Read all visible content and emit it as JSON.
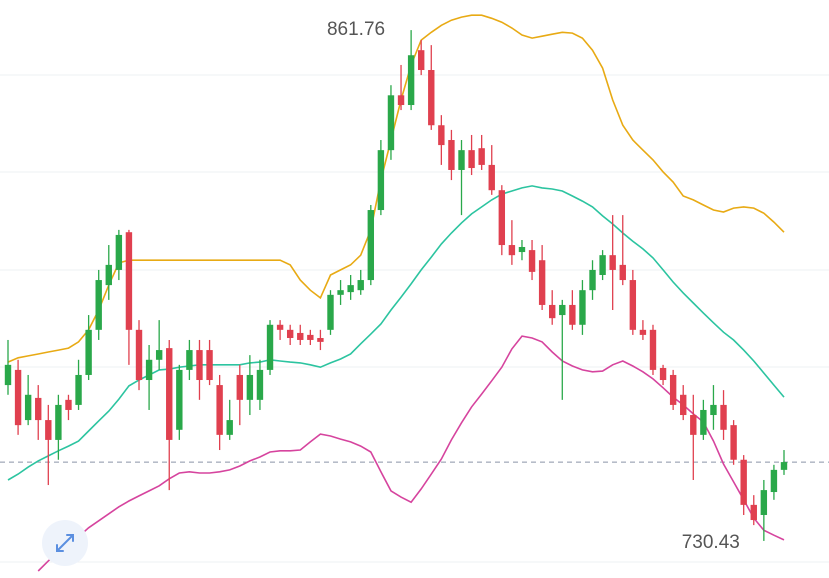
{
  "chart_data": {
    "type": "candlestick",
    "ylim": [
      720.9,
      869.5
    ],
    "up_color": "#2aa84a",
    "down_color": "#e0404f",
    "open": [
      770.5,
      774.4,
      761.5,
      767.2,
      761.5,
      756.4,
      766.7,
      765.4,
      773.1,
      784.7,
      796.2,
      800.1,
      809.8,
      784.7,
      771.8,
      777.0,
      780.0,
      759.0,
      774.4,
      779.5,
      779.5,
      770.5,
      757.7,
      773.1,
      766.7,
      766.7,
      774.4,
      786.0,
      784.7,
      783.9,
      783.4,
      782.6,
      784.7,
      793.7,
      794.4,
      794.9,
      797.5,
      815.5,
      830.9,
      845.0,
      842.5,
      856.6,
      851.5,
      837.3,
      833.5,
      825.8,
      830.9,
      831.4,
      827.1,
      820.6,
      806.5,
      804.7,
      805.2,
      802.6,
      791.1,
      788.5,
      791.1,
      786.0,
      794.9,
      798.8,
      803.9,
      801.4,
      797.5,
      784.7,
      784.7,
      774.9,
      773.1,
      768.0,
      762.8,
      757.7,
      762.8,
      765.4,
      760.2,
      751.3,
      739.7,
      737.1,
      743.0,
      748.7
    ],
    "high": [
      782.1,
      777.0,
      773.1,
      770.5,
      765.4,
      768.0,
      768.0,
      777.0,
      788.5,
      800.1,
      806.5,
      810.4,
      810.4,
      787.2,
      780.8,
      787.2,
      782.1,
      775.7,
      782.1,
      782.1,
      782.1,
      773.1,
      766.7,
      775.7,
      778.2,
      777.0,
      787.2,
      787.2,
      786.0,
      786.0,
      784.7,
      784.7,
      794.9,
      797.5,
      798.8,
      800.1,
      816.8,
      833.5,
      847.6,
      852.8,
      861.76,
      859.2,
      857.9,
      839.9,
      836.1,
      833.5,
      834.8,
      834.8,
      832.2,
      821.9,
      812.9,
      807.8,
      807.8,
      806.5,
      794.9,
      792.4,
      794.9,
      797.5,
      802.6,
      805.2,
      814.2,
      814.2,
      800.1,
      787.2,
      786.0,
      775.7,
      774.4,
      770.5,
      768.0,
      766.7,
      770.5,
      769.2,
      761.5,
      752.5,
      742.2,
      746.1,
      750.0,
      753.8
    ],
    "low": [
      768.0,
      757.7,
      760.2,
      756.4,
      744.8,
      751.3,
      761.5,
      764.1,
      771.8,
      782.1,
      792.4,
      797.5,
      775.7,
      769.2,
      764.1,
      774.4,
      743.5,
      756.4,
      771.8,
      766.7,
      770.5,
      753.8,
      756.4,
      760.2,
      762.8,
      764.1,
      773.1,
      782.1,
      780.8,
      780.8,
      780.8,
      779.5,
      783.4,
      791.1,
      792.4,
      793.7,
      796.2,
      814.2,
      828.4,
      841.2,
      841.2,
      850.2,
      836.1,
      827.1,
      823.2,
      814.2,
      824.5,
      825.8,
      819.4,
      803.9,
      801.4,
      802.6,
      797.5,
      789.8,
      786.0,
      766.7,
      784.7,
      783.4,
      792.4,
      797.5,
      789.8,
      796.2,
      783.4,
      782.1,
      773.1,
      770.5,
      764.1,
      761.5,
      746.1,
      756.4,
      759.0,
      756.4,
      750.0,
      737.1,
      734.5,
      730.43,
      741.0,
      747.4
    ],
    "close": [
      775.7,
      760.2,
      768.0,
      761.5,
      756.4,
      765.4,
      764.1,
      773.1,
      784.7,
      797.5,
      801.4,
      809.1,
      784.7,
      771.8,
      777.0,
      779.5,
      756.4,
      774.4,
      779.5,
      771.8,
      771.8,
      757.7,
      761.5,
      766.7,
      773.1,
      774.4,
      786.0,
      784.7,
      782.6,
      782.1,
      782.1,
      781.6,
      793.7,
      794.9,
      796.2,
      797.5,
      815.5,
      830.9,
      845.0,
      842.5,
      855.3,
      851.5,
      837.3,
      832.2,
      825.8,
      830.9,
      826.3,
      827.1,
      820.6,
      806.5,
      803.9,
      806.0,
      799.6,
      791.1,
      787.7,
      791.1,
      786.0,
      794.9,
      800.1,
      803.9,
      800.1,
      797.5,
      784.7,
      783.4,
      774.4,
      771.8,
      765.4,
      762.8,
      757.7,
      764.1,
      765.4,
      759.0,
      751.3,
      739.7,
      735.8,
      743.5,
      748.7,
      750.7
    ],
    "bands": [
      {
        "color": "#e8aa14",
        "values": [
          776.4,
          777.5,
          778.0,
          778.5,
          779.0,
          779.5,
          780.0,
          781.6,
          784.7,
          789.8,
          796.2,
          801.9,
          802.6,
          802.6,
          802.6,
          802.6,
          802.6,
          802.6,
          802.6,
          802.6,
          802.6,
          802.6,
          802.6,
          802.6,
          802.6,
          802.6,
          802.6,
          802.6,
          801.4,
          797.5,
          794.9,
          792.9,
          798.8,
          800.1,
          801.4,
          803.9,
          810.4,
          823.2,
          833.5,
          843.8,
          852.8,
          859.2,
          861.2,
          863.0,
          864.3,
          865.1,
          865.6,
          865.6,
          864.8,
          863.8,
          862.3,
          860.5,
          859.7,
          860.2,
          860.7,
          861.2,
          861.0,
          859.7,
          856.6,
          852.0,
          843.8,
          837.3,
          833.5,
          830.9,
          828.4,
          825.3,
          822.7,
          819.1,
          818.1,
          816.8,
          815.5,
          815.0,
          816.0,
          816.3,
          816.0,
          814.7,
          812.4,
          809.8
        ]
      },
      {
        "color": "#2cc4a0",
        "values": [
          746.1,
          747.6,
          749.4,
          751.0,
          752.3,
          753.6,
          754.8,
          756.1,
          758.7,
          761.3,
          763.8,
          766.9,
          770.3,
          771.8,
          773.1,
          774.4,
          774.6,
          775.1,
          775.4,
          775.7,
          775.7,
          775.7,
          775.7,
          775.7,
          776.2,
          776.4,
          777.0,
          776.7,
          776.4,
          776.2,
          775.7,
          775.1,
          776.2,
          777.2,
          778.5,
          781.1,
          783.6,
          786.2,
          789.8,
          793.1,
          796.5,
          800.1,
          803.4,
          806.8,
          809.6,
          812.2,
          814.5,
          816.3,
          818.1,
          819.6,
          820.4,
          821.2,
          821.7,
          821.2,
          820.9,
          820.4,
          819.1,
          817.8,
          816.3,
          814.0,
          811.9,
          809.6,
          807.5,
          805.5,
          803.2,
          800.1,
          797.0,
          794.2,
          791.6,
          789.0,
          786.5,
          784.1,
          782.1,
          779.5,
          776.7,
          773.6,
          770.5,
          767.4
        ]
      },
      {
        "color": "#d6449e",
        "values": [
          null,
          null,
          null,
          722.7,
          725.3,
          727.6,
          729.7,
          731.5,
          733.8,
          735.6,
          737.4,
          739.2,
          740.7,
          742.0,
          743.3,
          744.6,
          746.4,
          747.9,
          748.2,
          747.9,
          747.9,
          748.2,
          748.7,
          749.7,
          751.0,
          752.0,
          753.3,
          753.6,
          753.6,
          753.8,
          755.9,
          757.9,
          757.4,
          756.6,
          755.9,
          754.8,
          753.3,
          748.2,
          743.3,
          741.7,
          740.4,
          743.8,
          747.6,
          751.5,
          756.4,
          760.8,
          764.9,
          768.2,
          771.6,
          775.1,
          779.8,
          783.1,
          782.6,
          781.6,
          779.0,
          776.7,
          775.4,
          774.4,
          773.9,
          774.1,
          775.7,
          776.7,
          775.4,
          773.9,
          772.1,
          769.8,
          767.4,
          765.4,
          763.1,
          761.0,
          756.1,
          750.2,
          745.6,
          741.0,
          736.3,
          733.2,
          731.9,
          730.7
        ]
      }
    ]
  }
}
